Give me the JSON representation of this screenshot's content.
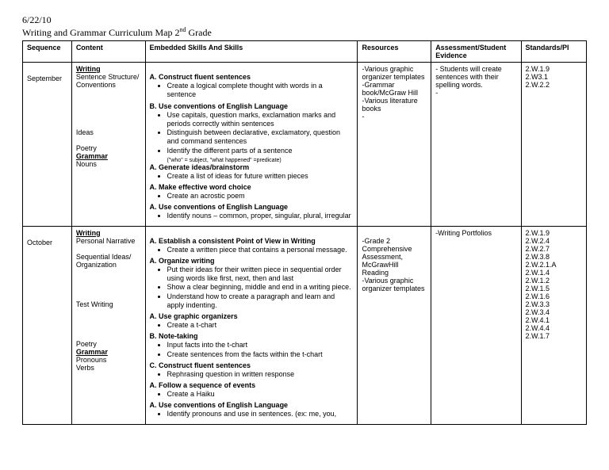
{
  "header": {
    "date": "6/22/10",
    "title_prefix": "Writing and Grammar Curriculum Map 2",
    "title_sup": "nd",
    "title_suffix": " Grade"
  },
  "columns": {
    "sequence": "Sequence",
    "content": "Content",
    "skills": "Embedded Skills And Skills",
    "resources": "Resources",
    "assessment": "Assessment/Student Evidence",
    "standards": "Standards/PI"
  },
  "rows": [
    {
      "sequence": "September",
      "content": {
        "groups": [
          {
            "heading": "Writing",
            "items": [
              "Sentence Structure/ Conventions",
              "",
              "",
              "",
              "",
              "",
              "Ideas",
              "",
              "Poetry"
            ]
          },
          {
            "heading": "Grammar",
            "items": [
              "Nouns"
            ]
          }
        ]
      },
      "skills": {
        "sections": [
          {
            "label": "A. Construct fluent sentences",
            "bullets": [
              "Create a logical complete thought with words in a sentence"
            ]
          },
          {
            "label": "B. Use conventions of English Language",
            "bullets": [
              "Use capitals, question marks, exclamation marks and periods correctly within sentences",
              "Distinguish between declarative, exclamatory, question and command sentences",
              "Identify the different parts of a sentence"
            ],
            "note": "(\"who\" = subject, \"what happened\" =predicate)"
          },
          {
            "label": "A. Generate ideas/brainstorm",
            "bullets": [
              "Create a list of ideas for future written pieces"
            ]
          },
          {
            "label": "A. Make effective word choice",
            "bullets": [
              "Create an acrostic poem"
            ]
          },
          {
            "label": "A. Use conventions of English Language",
            "bullets": [
              "Identify nouns – common, proper, singular, plural, irregular"
            ]
          }
        ]
      },
      "resources": [
        "-Various graphic organizer templates",
        "-Grammar book/McGraw Hill",
        "-Various literature books",
        "-"
      ],
      "assessment": [
        "- Students will create sentences with their spelling words.",
        "-"
      ],
      "standards": [
        "2.W.1.9",
        "2.W3.1",
        "2.W.2.2"
      ]
    },
    {
      "sequence": "October",
      "content": {
        "groups": [
          {
            "heading": "Writing",
            "items": [
              "Personal Narrative",
              "",
              "Sequential Ideas/ Organization",
              "",
              "",
              "",
              "",
              "Test Writing",
              "",
              "",
              "",
              "",
              "Poetry"
            ]
          },
          {
            "heading": "Grammar",
            "items": [
              "Pronouns",
              "Verbs"
            ]
          }
        ]
      },
      "skills": {
        "sections": [
          {
            "label": "A. Establish a consistent Point of View in Writing",
            "bullets": [
              "Create a written piece that contains a personal message."
            ]
          },
          {
            "label": "A. Organize writing",
            "bullets": [
              "Put their ideas for their written piece in sequential order using words like first, next, then and last",
              "Show a clear beginning, middle and end in a  writing piece.",
              "Understand how to create a paragraph and learn and apply indenting."
            ]
          },
          {
            "label": "A.  Use graphic organizers",
            "bullets": [
              "Create a t-chart"
            ]
          },
          {
            "label": "B.  Note-taking",
            "bullets": [
              "Input facts into the t-chart",
              "Create sentences from the facts within the t-chart"
            ]
          },
          {
            "label": "C.  Construct fluent sentences",
            "bullets": [
              "Rephrasing question in written response"
            ]
          },
          {
            "label": "A.  Follow a sequence of events",
            "bullets": [
              "Create a Haiku"
            ]
          },
          {
            "label": "A. Use conventions of English Language",
            "bullets": [
              "Identify pronouns and use in sentences. (ex: me, you,"
            ]
          }
        ]
      },
      "resources": [
        "",
        "-Grade 2 Comprehensive Assessment, McGrawHill Reading",
        "-Various graphic organizer templates"
      ],
      "assessment": [
        "-Writing Portfolios"
      ],
      "standards": [
        "2.W.1.9",
        "2.W.2.4",
        "2.W.2.7",
        "2.W.3.8",
        "2.W.2.1.A",
        "2.W.1.4",
        "2.W.1.2",
        "2.W.1.5",
        "2.W.1.6",
        "2.W.3.3",
        "2.W.3.4",
        "2.W.4.1",
        "2.W.4.4",
        "2.W.1.7"
      ]
    }
  ]
}
